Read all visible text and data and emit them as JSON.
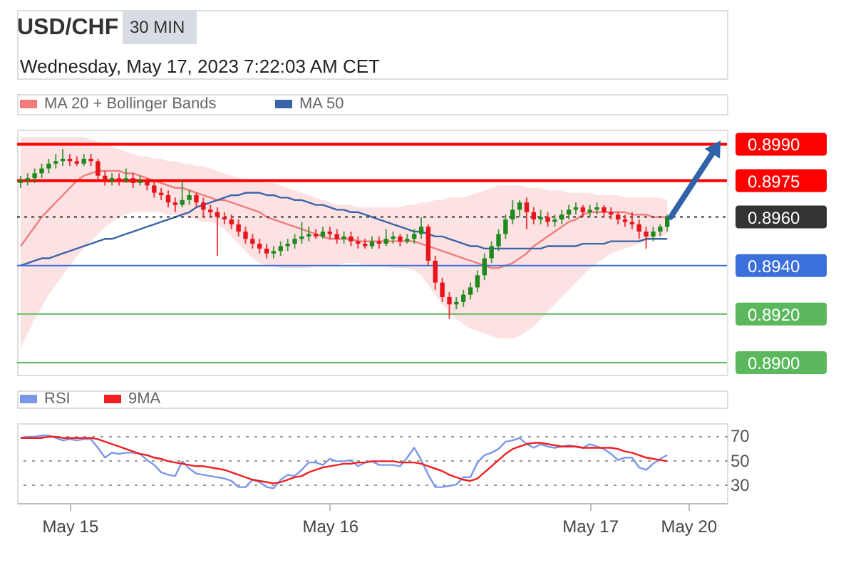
{
  "chart_data": [
    {
      "type": "candlestick",
      "title": "USD/CHF",
      "subtitle": "Wednesday, May 17, 2023 7:22:03 AM CET",
      "annotations": [
        "30 MIN"
      ],
      "ohlc": [
        [
          0.8974,
          0.8977,
          0.8972,
          0.8975
        ],
        [
          0.8975,
          0.8978,
          0.8973,
          0.8976
        ],
        [
          0.8976,
          0.898,
          0.8974,
          0.8978
        ],
        [
          0.8978,
          0.8982,
          0.8976,
          0.898
        ],
        [
          0.898,
          0.8984,
          0.8978,
          0.8982
        ],
        [
          0.8982,
          0.8986,
          0.898,
          0.8983
        ],
        [
          0.8983,
          0.8988,
          0.8981,
          0.8984
        ],
        [
          0.8984,
          0.8986,
          0.8981,
          0.8983
        ],
        [
          0.8983,
          0.8985,
          0.8981,
          0.8982
        ],
        [
          0.8982,
          0.8986,
          0.8981,
          0.8984
        ],
        [
          0.8984,
          0.8986,
          0.8981,
          0.8983
        ],
        [
          0.8983,
          0.8984,
          0.8975,
          0.8977
        ],
        [
          0.8977,
          0.8979,
          0.8973,
          0.8975
        ],
        [
          0.8975,
          0.8978,
          0.8973,
          0.8976
        ],
        [
          0.8976,
          0.8978,
          0.8973,
          0.8975
        ],
        [
          0.8975,
          0.898,
          0.8974,
          0.8976
        ],
        [
          0.8976,
          0.8978,
          0.8972,
          0.8974
        ],
        [
          0.8974,
          0.8977,
          0.8973,
          0.8975
        ],
        [
          0.8975,
          0.8976,
          0.8971,
          0.8973
        ],
        [
          0.8973,
          0.8975,
          0.8968,
          0.897
        ],
        [
          0.897,
          0.8972,
          0.8967,
          0.8969
        ],
        [
          0.8969,
          0.8971,
          0.8964,
          0.8966
        ],
        [
          0.8966,
          0.8968,
          0.8962,
          0.8965
        ],
        [
          0.8965,
          0.8975,
          0.8964,
          0.8967
        ],
        [
          0.8967,
          0.8971,
          0.8965,
          0.8969
        ],
        [
          0.8969,
          0.897,
          0.8964,
          0.8966
        ],
        [
          0.8966,
          0.8968,
          0.896,
          0.8963
        ],
        [
          0.8963,
          0.8965,
          0.896,
          0.8962
        ],
        [
          0.8962,
          0.8964,
          0.8944,
          0.896
        ],
        [
          0.896,
          0.8962,
          0.8957,
          0.8959
        ],
        [
          0.8959,
          0.8961,
          0.8955,
          0.8957
        ],
        [
          0.8957,
          0.8959,
          0.8952,
          0.8954
        ],
        [
          0.8954,
          0.8956,
          0.8949,
          0.8951
        ],
        [
          0.8951,
          0.8953,
          0.8947,
          0.8949
        ],
        [
          0.8949,
          0.8951,
          0.8945,
          0.8947
        ],
        [
          0.8947,
          0.8949,
          0.8943,
          0.8945
        ],
        [
          0.8945,
          0.8948,
          0.8943,
          0.8946
        ],
        [
          0.8946,
          0.895,
          0.8944,
          0.8948
        ],
        [
          0.8948,
          0.8951,
          0.8946,
          0.8949
        ],
        [
          0.8949,
          0.8953,
          0.8947,
          0.8951
        ],
        [
          0.8951,
          0.8958,
          0.8949,
          0.8952
        ],
        [
          0.8952,
          0.8956,
          0.895,
          0.8953
        ],
        [
          0.8953,
          0.8955,
          0.8951,
          0.8952
        ],
        [
          0.8952,
          0.8956,
          0.8951,
          0.8954
        ],
        [
          0.8954,
          0.8956,
          0.8951,
          0.8953
        ],
        [
          0.8953,
          0.8955,
          0.8949,
          0.8951
        ],
        [
          0.8951,
          0.8954,
          0.8949,
          0.8952
        ],
        [
          0.8952,
          0.8954,
          0.8948,
          0.895
        ],
        [
          0.895,
          0.8952,
          0.8947,
          0.8949
        ],
        [
          0.8949,
          0.8951,
          0.8947,
          0.8948
        ],
        [
          0.8948,
          0.8952,
          0.8947,
          0.895
        ],
        [
          0.895,
          0.8952,
          0.8947,
          0.8949
        ],
        [
          0.8949,
          0.8955,
          0.8948,
          0.8951
        ],
        [
          0.8951,
          0.8954,
          0.8949,
          0.8952
        ],
        [
          0.8952,
          0.8953,
          0.8948,
          0.895
        ],
        [
          0.895,
          0.8953,
          0.8949,
          0.8951
        ],
        [
          0.8951,
          0.8955,
          0.8949,
          0.8953
        ],
        [
          0.8953,
          0.896,
          0.8951,
          0.8956
        ],
        [
          0.8956,
          0.8957,
          0.894,
          0.8942
        ],
        [
          0.8942,
          0.8944,
          0.893,
          0.8933
        ],
        [
          0.8933,
          0.8935,
          0.8925,
          0.8927
        ],
        [
          0.8927,
          0.8929,
          0.8918,
          0.8924
        ],
        [
          0.8924,
          0.8927,
          0.8922,
          0.8925
        ],
        [
          0.8925,
          0.893,
          0.8923,
          0.8928
        ],
        [
          0.8928,
          0.8933,
          0.8926,
          0.8931
        ],
        [
          0.8931,
          0.8938,
          0.8929,
          0.8936
        ],
        [
          0.8936,
          0.8945,
          0.8934,
          0.8943
        ],
        [
          0.8943,
          0.895,
          0.8941,
          0.8948
        ],
        [
          0.8948,
          0.8955,
          0.8946,
          0.8953
        ],
        [
          0.8953,
          0.8961,
          0.8951,
          0.8959
        ],
        [
          0.8959,
          0.8967,
          0.8957,
          0.8963
        ],
        [
          0.8963,
          0.8967,
          0.896,
          0.8966
        ],
        [
          0.8966,
          0.8968,
          0.8955,
          0.8962
        ],
        [
          0.8962,
          0.8964,
          0.8957,
          0.8959
        ],
        [
          0.8959,
          0.8963,
          0.8957,
          0.896
        ],
        [
          0.896,
          0.8962,
          0.8956,
          0.8958
        ],
        [
          0.8958,
          0.8961,
          0.8956,
          0.8959
        ],
        [
          0.8959,
          0.8963,
          0.8957,
          0.8961
        ],
        [
          0.8961,
          0.8965,
          0.8959,
          0.8963
        ],
        [
          0.8963,
          0.8966,
          0.8961,
          0.8964
        ],
        [
          0.8964,
          0.8965,
          0.896,
          0.8962
        ],
        [
          0.8962,
          0.8965,
          0.896,
          0.8963
        ],
        [
          0.8963,
          0.8966,
          0.8961,
          0.8964
        ],
        [
          0.8964,
          0.8965,
          0.896,
          0.8962
        ],
        [
          0.8962,
          0.8964,
          0.8959,
          0.8961
        ],
        [
          0.8961,
          0.8962,
          0.8957,
          0.8959
        ],
        [
          0.8959,
          0.8961,
          0.8956,
          0.8958
        ],
        [
          0.8958,
          0.8962,
          0.8955,
          0.8957
        ],
        [
          0.8957,
          0.8959,
          0.8951,
          0.8954
        ],
        [
          0.8954,
          0.8956,
          0.8947,
          0.8952
        ],
        [
          0.8952,
          0.8956,
          0.895,
          0.8954
        ],
        [
          0.8954,
          0.8957,
          0.8952,
          0.8956
        ],
        [
          0.8956,
          0.8961,
          0.8954,
          0.896
        ],
        null,
        null,
        null,
        null,
        null,
        null,
        null,
        null
      ],
      "series": [
        {
          "name": "MA 20 + Bollinger Bands",
          "type": "line",
          "color": "#f27c7c",
          "values": [
            0.8948,
            0.8952,
            0.8956,
            0.896,
            0.8963,
            0.8966,
            0.8969,
            0.8972,
            0.8975,
            0.8977,
            0.8978,
            0.8979,
            0.8979,
            0.8979,
            0.8979,
            0.8978,
            0.8978,
            0.8977,
            0.8976,
            0.8975,
            0.8974,
            0.8973,
            0.8972,
            0.8972,
            0.8971,
            0.897,
            0.8969,
            0.8968,
            0.8967,
            0.8967,
            0.8966,
            0.8965,
            0.8964,
            0.8963,
            0.8962,
            0.896,
            0.8959,
            0.8958,
            0.8957,
            0.8956,
            0.8955,
            0.8954,
            0.8953,
            0.8952,
            0.8951,
            0.8951,
            0.8951,
            0.8951,
            0.895,
            0.895,
            0.895,
            0.895,
            0.895,
            0.895,
            0.895,
            0.895,
            0.895,
            0.8949,
            0.8948,
            0.8947,
            0.8946,
            0.8945,
            0.8944,
            0.8943,
            0.8942,
            0.8941,
            0.894,
            0.8939,
            0.8939,
            0.894,
            0.8941,
            0.8943,
            0.8945,
            0.8948,
            0.895,
            0.8952,
            0.8954,
            0.8956,
            0.8958,
            0.8959,
            0.8961,
            0.8962,
            0.8962,
            0.8962,
            0.8962,
            0.8962,
            0.8962,
            0.8961,
            0.8961,
            0.8961,
            0.896,
            0.896,
            0.896,
            null,
            null,
            null,
            null,
            null,
            null,
            null,
            null
          ],
          "lower": [
            0.8906,
            0.8912,
            0.8918,
            0.8923,
            0.8928,
            0.8932,
            0.8936,
            0.894,
            0.8944,
            0.8947,
            0.895,
            0.8953,
            0.8956,
            0.8958,
            0.896,
            0.8961,
            0.8962,
            0.8962,
            0.8962,
            0.8962,
            0.8962,
            0.8961,
            0.8961,
            0.896,
            0.896,
            0.8959,
            0.8958,
            0.8958,
            0.8957,
            0.8955,
            0.8952,
            0.8949,
            0.8946,
            0.8943,
            0.8941,
            0.894,
            0.894,
            0.8939,
            0.8939,
            0.8939,
            0.8939,
            0.8939,
            0.894,
            0.894,
            0.894,
            0.894,
            0.8941,
            0.8941,
            0.8941,
            0.894,
            0.894,
            0.894,
            0.894,
            0.8939,
            0.8939,
            0.8939,
            0.8938,
            0.8936,
            0.8932,
            0.8928,
            0.8924,
            0.8921,
            0.8918,
            0.8916,
            0.8914,
            0.8913,
            0.8912,
            0.8911,
            0.891,
            0.891,
            0.891,
            0.8911,
            0.8913,
            0.8915,
            0.8918,
            0.8921,
            0.8924,
            0.8927,
            0.893,
            0.8933,
            0.8936,
            0.8939,
            0.8941,
            0.8943,
            0.8945,
            0.8946,
            0.8947,
            0.8948,
            0.8949,
            0.895,
            0.8951,
            0.8952,
            0.8953,
            null,
            null,
            null,
            null,
            null,
            null,
            null,
            null
          ],
          "upper": [
            0.8993,
            0.8993,
            0.8993,
            0.8993,
            0.8993,
            0.8993,
            0.8993,
            0.8993,
            0.8993,
            0.8993,
            0.8992,
            0.8991,
            0.899,
            0.8989,
            0.8988,
            0.8987,
            0.8986,
            0.8985,
            0.8985,
            0.8984,
            0.8984,
            0.8983,
            0.8983,
            0.8982,
            0.8982,
            0.8981,
            0.8981,
            0.898,
            0.8979,
            0.8978,
            0.8977,
            0.8976,
            0.8976,
            0.8975,
            0.8975,
            0.8974,
            0.8974,
            0.8973,
            0.8972,
            0.8971,
            0.897,
            0.8969,
            0.8968,
            0.8967,
            0.8966,
            0.8965,
            0.8965,
            0.8965,
            0.8964,
            0.8964,
            0.8964,
            0.8964,
            0.8964,
            0.8964,
            0.8964,
            0.8965,
            0.8965,
            0.8966,
            0.8966,
            0.8967,
            0.8967,
            0.8968,
            0.8968,
            0.8968,
            0.8969,
            0.897,
            0.8971,
            0.8972,
            0.8973,
            0.8973,
            0.8973,
            0.8973,
            0.8972,
            0.8972,
            0.8972,
            0.8971,
            0.8971,
            0.8971,
            0.897,
            0.897,
            0.897,
            0.897,
            0.8969,
            0.8969,
            0.8969,
            0.8969,
            0.8968,
            0.8968,
            0.8968,
            0.8968,
            0.8968,
            0.8968,
            0.8967,
            null,
            null,
            null,
            null,
            null,
            null,
            null,
            null
          ]
        },
        {
          "name": "MA 50",
          "type": "line",
          "color": "#3a64a8",
          "values": [
            0.894,
            0.8941,
            0.8942,
            0.8943,
            0.8943,
            0.8944,
            0.8945,
            0.8946,
            0.8947,
            0.8948,
            0.8949,
            0.895,
            0.8951,
            0.8951,
            0.8952,
            0.8953,
            0.8954,
            0.8955,
            0.8956,
            0.8957,
            0.8958,
            0.8959,
            0.896,
            0.8961,
            0.8962,
            0.8964,
            0.8965,
            0.8966,
            0.8967,
            0.8968,
            0.8969,
            0.8969,
            0.897,
            0.897,
            0.897,
            0.8969,
            0.8969,
            0.8968,
            0.8968,
            0.8967,
            0.8967,
            0.8966,
            0.8965,
            0.8965,
            0.8964,
            0.8963,
            0.8963,
            0.8962,
            0.8962,
            0.8961,
            0.896,
            0.8959,
            0.8958,
            0.8957,
            0.8956,
            0.8955,
            0.8954,
            0.8954,
            0.8953,
            0.8952,
            0.8952,
            0.8951,
            0.895,
            0.8949,
            0.8948,
            0.8948,
            0.8947,
            0.8947,
            0.8947,
            0.8947,
            0.8947,
            0.8947,
            0.8947,
            0.8947,
            0.8947,
            0.8948,
            0.8948,
            0.8948,
            0.8948,
            0.8948,
            0.8949,
            0.8949,
            0.8949,
            0.8949,
            0.895,
            0.895,
            0.895,
            0.895,
            0.895,
            0.8951,
            0.8951,
            0.8951,
            0.8951,
            null,
            null,
            null,
            null,
            null,
            null,
            null,
            null
          ]
        }
      ],
      "ylim": [
        0.8895,
        0.8996
      ],
      "yticks": [
        {
          "value": 0.89,
          "label": "0.8900"
        },
        {
          "value": 0.892,
          "label": "0.8920"
        },
        {
          "value": 0.894,
          "label": "0.8940"
        },
        {
          "value": 0.896,
          "label": "0.8960"
        },
        {
          "value": 0.8975,
          "label": "0.8975"
        },
        {
          "value": 0.899,
          "label": "0.8990"
        }
      ],
      "ref_lines": [
        {
          "axis": "y",
          "value": 0.899,
          "color": "#ff0000"
        },
        {
          "axis": "y",
          "value": 0.8975,
          "color": "#ff0000"
        },
        {
          "axis": "y",
          "value": 0.896,
          "color": "#333333",
          "line_style": "dotted"
        },
        {
          "axis": "y",
          "value": 0.894,
          "color": "#3a6fdc"
        },
        {
          "axis": "y",
          "value": 0.892,
          "color": "#5cb85c"
        },
        {
          "axis": "y",
          "value": 0.89,
          "color": "#5cb85c"
        }
      ],
      "legend": "top left",
      "tick_labels": "y"
    },
    {
      "type": "line",
      "categories": [
        null,
        null,
        null,
        null,
        null,
        null,
        null,
        "May 15",
        null,
        null,
        null,
        null,
        null,
        null,
        null,
        null,
        null,
        null,
        null,
        null,
        null,
        null,
        null,
        null,
        null,
        null,
        null,
        null,
        null,
        null,
        null,
        null,
        null,
        null,
        null,
        null,
        null,
        null,
        null,
        null,
        null,
        null,
        null,
        null,
        "May 16",
        null,
        null,
        null,
        null,
        null,
        null,
        null,
        null,
        null,
        null,
        null,
        null,
        null,
        null,
        null,
        null,
        null,
        null,
        null,
        null,
        null,
        null,
        null,
        null,
        null,
        null,
        null,
        null,
        null,
        null,
        null,
        null,
        null,
        null,
        null,
        null,
        "May 17",
        null,
        null,
        null,
        null,
        null,
        null,
        null,
        null,
        null,
        null,
        null,
        null,
        null,
        "May 20",
        null,
        null,
        null,
        null,
        null
      ],
      "series": [
        {
          "name": "RSI",
          "color": "#7b97ea",
          "values": [
            68,
            69,
            69,
            70,
            70,
            68,
            66,
            67,
            66,
            67,
            67,
            60,
            52,
            56,
            55,
            56,
            56,
            55,
            50,
            46,
            40,
            38,
            37,
            49,
            43,
            39,
            38,
            37,
            36,
            35,
            33,
            28,
            28,
            34,
            32,
            28,
            27,
            34,
            38,
            37,
            42,
            48,
            48,
            46,
            51,
            49,
            49,
            50,
            45,
            48,
            49,
            46,
            46,
            46,
            45,
            52,
            60,
            50,
            38,
            28,
            28,
            29,
            30,
            36,
            36,
            48,
            54,
            56,
            59,
            65,
            66,
            68,
            63,
            60,
            63,
            61,
            60,
            61,
            62,
            61,
            60,
            63,
            61,
            59,
            55,
            50,
            52,
            52,
            44,
            42,
            47,
            51,
            54,
            null,
            null,
            null,
            null,
            null,
            null,
            null,
            null
          ]
        },
        {
          "name": "9MA",
          "color": "#f02020",
          "values": [
            68,
            68,
            68,
            68,
            69,
            69,
            68,
            68,
            68,
            68,
            68,
            67,
            65,
            63,
            61,
            59,
            57,
            55,
            54,
            52,
            51,
            49,
            48,
            47,
            46,
            45,
            45,
            44,
            43,
            42,
            40,
            38,
            36,
            34,
            33,
            32,
            31,
            32,
            34,
            36,
            37,
            40,
            42,
            44,
            45,
            46,
            47,
            47,
            48,
            48,
            49,
            49,
            49,
            49,
            48,
            48,
            48,
            47,
            45,
            43,
            41,
            38,
            36,
            34,
            33,
            35,
            40,
            45,
            50,
            55,
            59,
            61,
            63,
            64,
            64,
            63,
            62,
            61,
            61,
            61,
            60,
            60,
            60,
            60,
            60,
            59,
            57,
            56,
            54,
            52,
            51,
            50,
            49,
            null,
            null,
            null,
            null,
            null,
            null,
            null,
            null
          ]
        }
      ],
      "ylim": [
        15,
        80
      ],
      "yticks": [
        30,
        50,
        70
      ],
      "grid": "y",
      "legend": "top left"
    }
  ]
}
